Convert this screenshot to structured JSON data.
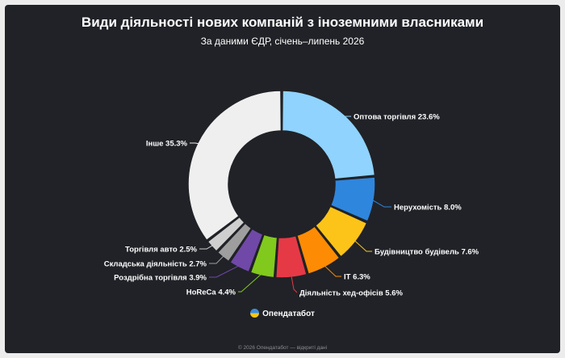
{
  "chart_data": {
    "type": "pie",
    "style": "donut",
    "title": "Види діяльності нових компаній з іноземними власниками",
    "subtitle": "За даними ЄДР, січень–липень 2026",
    "slices": [
      {
        "label": "Оптова торгівля",
        "value": 23.6,
        "value_text": "23.6%",
        "color": "#8fd3fe"
      },
      {
        "label": "Нерухомість",
        "value": 8.0,
        "value_text": "8.0%",
        "color": "#2f86dd"
      },
      {
        "label": "Будівництво будівель",
        "value": 7.6,
        "value_text": "7.6%",
        "color": "#fcc419"
      },
      {
        "label": "IT",
        "value": 6.3,
        "value_text": "6.3%",
        "color": "#fd8c04"
      },
      {
        "label": "Діяльність хед-офісів",
        "value": 5.6,
        "value_text": "5.6%",
        "color": "#e63946"
      },
      {
        "label": "HoReCa",
        "value": 4.4,
        "value_text": "4.4%",
        "color": "#82c91e"
      },
      {
        "label": "Роздрібна торгівля",
        "value": 3.9,
        "value_text": "3.9%",
        "color": "#7048a8"
      },
      {
        "label": "Складська діяльність",
        "value": 2.7,
        "value_text": "2.7%",
        "color": "#9e9e9e"
      },
      {
        "label": "Торгівля авто",
        "value": 2.5,
        "value_text": "2.5%",
        "color": "#cfcfcf"
      },
      {
        "label": "Інше",
        "value": 35.3,
        "value_text": "35.3%",
        "color": "#efefef"
      }
    ]
  },
  "brand": {
    "name": "Опендатабот"
  },
  "footer": {
    "text": "© 2026 Опендатабот — відкриті дані"
  }
}
